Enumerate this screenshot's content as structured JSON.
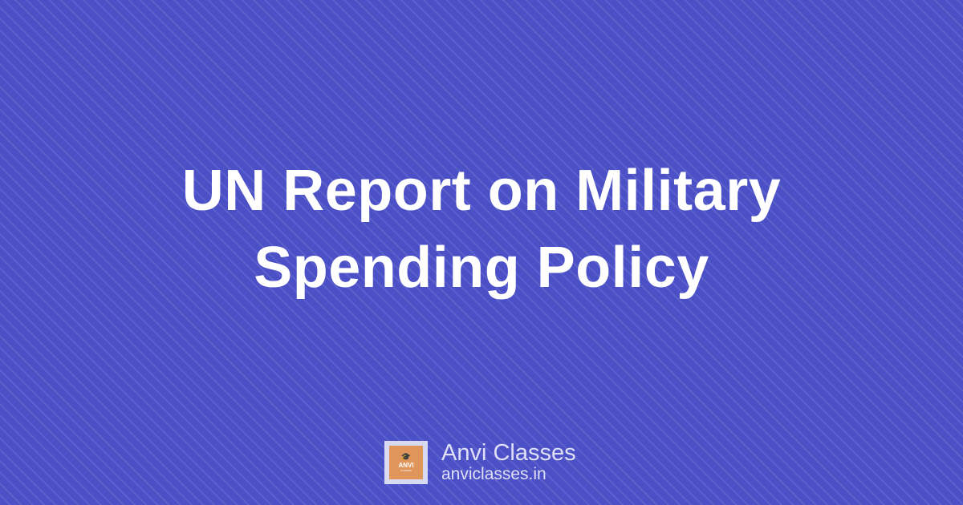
{
  "title": {
    "line1": "UN Report on Military",
    "line2": "Spending Policy"
  },
  "brand": {
    "name": "Anvi Classes",
    "url": "anviclasses.in",
    "logo_text": "ANVI",
    "logo_subtext": "CLASSES"
  },
  "colors": {
    "background": "#4b50c6",
    "text": "#ffffff",
    "logo": "#e0955a"
  }
}
